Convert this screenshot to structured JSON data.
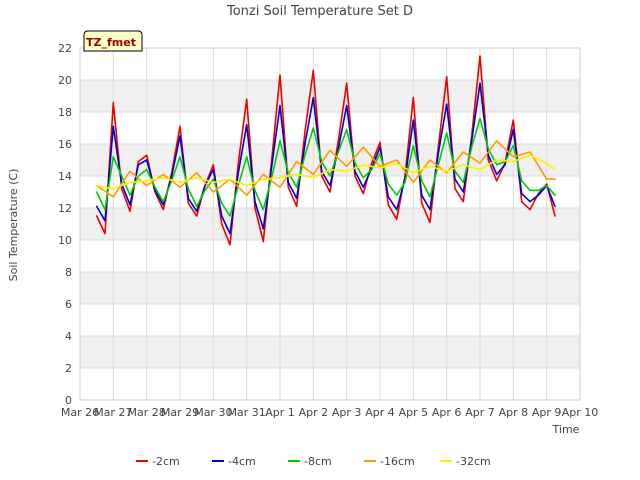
{
  "chart_data": {
    "type": "line",
    "title": "Tonzi Soil Temperature Set D",
    "xlabel": "Time",
    "ylabel": "Soil Temperature (C)",
    "ylim": [
      0,
      22
    ],
    "yticks": [
      0,
      2,
      4,
      6,
      8,
      10,
      12,
      14,
      16,
      18,
      20,
      22
    ],
    "xlim": [
      "Mar 26",
      "Apr 10"
    ],
    "xticks": [
      "Mar 26",
      "Mar 27",
      "Mar 28",
      "Mar 29",
      "Mar 30",
      "Mar 31",
      "Apr 1",
      "Apr 2",
      "Apr 3",
      "Apr 4",
      "Apr 5",
      "Apr 6",
      "Apr 7",
      "Apr 8",
      "Apr 9",
      "Apr 10"
    ],
    "grid": true,
    "legend_position": "bottom",
    "annotation": "TZ_fmet",
    "series": [
      {
        "name": "-2cm",
        "color": "#ee0000",
        "x": [
          "Mar 26 12:00",
          "Mar 26 18:00",
          "Mar 27 00:00",
          "Mar 27 06:00",
          "Mar 27 12:00",
          "Mar 27 18:00",
          "Mar 28 00:00",
          "Mar 28 06:00",
          "Mar 28 12:00",
          "Mar 28 18:00",
          "Mar 29 00:00",
          "Mar 29 06:00",
          "Mar 29 12:00",
          "Mar 29 18:00",
          "Mar 30 00:00",
          "Mar 30 06:00",
          "Mar 30 12:00",
          "Mar 30 18:00",
          "Mar 31 00:00",
          "Mar 31 06:00",
          "Mar 31 12:00",
          "Mar 31 18:00",
          "Apr 1 00:00",
          "Apr 1 06:00",
          "Apr 1 12:00",
          "Apr 1 18:00",
          "Apr 2 00:00",
          "Apr 2 06:00",
          "Apr 2 12:00",
          "Apr 2 18:00",
          "Apr 3 00:00",
          "Apr 3 06:00",
          "Apr 3 12:00",
          "Apr 3 18:00",
          "Apr 4 00:00",
          "Apr 4 06:00",
          "Apr 4 12:00",
          "Apr 4 18:00",
          "Apr 5 00:00",
          "Apr 5 06:00",
          "Apr 5 12:00",
          "Apr 5 18:00",
          "Apr 6 00:00",
          "Apr 6 06:00",
          "Apr 6 12:00",
          "Apr 6 18:00",
          "Apr 7 00:00",
          "Apr 7 06:00",
          "Apr 7 12:00",
          "Apr 7 18:00",
          "Apr 8 00:00",
          "Apr 8 06:00",
          "Apr 8 12:00",
          "Apr 8 18:00",
          "Apr 9 00:00",
          "Apr 9 06:00"
        ],
        "y": [
          11.5,
          10.4,
          18.6,
          13.2,
          11.8,
          14.9,
          15.3,
          13.0,
          11.9,
          14.2,
          17.1,
          12.3,
          11.5,
          13.4,
          14.7,
          11.0,
          9.7,
          14.8,
          18.8,
          12.0,
          9.9,
          15.0,
          20.3,
          13.3,
          12.1,
          16.8,
          20.6,
          14.0,
          13.0,
          16.2,
          19.8,
          14.0,
          12.9,
          14.8,
          16.1,
          12.2,
          11.3,
          14.0,
          18.9,
          12.3,
          11.1,
          15.8,
          20.2,
          13.2,
          12.4,
          16.5,
          21.5,
          15.0,
          13.7,
          14.8,
          17.5,
          12.4,
          11.9,
          12.9,
          13.5,
          11.5
        ]
      },
      {
        "name": "-4cm",
        "color": "#0000cc",
        "x": [
          "Mar 26 12:00",
          "Mar 26 18:00",
          "Mar 27 00:00",
          "Mar 27 06:00",
          "Mar 27 12:00",
          "Mar 27 18:00",
          "Mar 28 00:00",
          "Mar 28 06:00",
          "Mar 28 12:00",
          "Mar 28 18:00",
          "Mar 29 00:00",
          "Mar 29 06:00",
          "Mar 29 12:00",
          "Mar 29 18:00",
          "Mar 30 00:00",
          "Mar 30 06:00",
          "Mar 30 12:00",
          "Mar 30 18:00",
          "Mar 31 00:00",
          "Mar 31 06:00",
          "Mar 31 12:00",
          "Mar 31 18:00",
          "Apr 1 00:00",
          "Apr 1 06:00",
          "Apr 1 12:00",
          "Apr 1 18:00",
          "Apr 2 00:00",
          "Apr 2 06:00",
          "Apr 2 12:00",
          "Apr 2 18:00",
          "Apr 3 00:00",
          "Apr 3 06:00",
          "Apr 3 12:00",
          "Apr 3 18:00",
          "Apr 4 00:00",
          "Apr 4 06:00",
          "Apr 4 12:00",
          "Apr 4 18:00",
          "Apr 5 00:00",
          "Apr 5 06:00",
          "Apr 5 12:00",
          "Apr 5 18:00",
          "Apr 6 00:00",
          "Apr 6 06:00",
          "Apr 6 12:00",
          "Apr 6 18:00",
          "Apr 7 00:00",
          "Apr 7 06:00",
          "Apr 7 12:00",
          "Apr 7 18:00",
          "Apr 8 00:00",
          "Apr 8 06:00",
          "Apr 8 12:00",
          "Apr 8 18:00",
          "Apr 9 00:00",
          "Apr 9 06:00"
        ],
        "y": [
          12.1,
          11.2,
          17.1,
          13.5,
          12.2,
          14.7,
          15.0,
          13.1,
          12.2,
          14.0,
          16.5,
          12.6,
          11.8,
          13.4,
          14.4,
          11.5,
          10.4,
          14.2,
          17.2,
          12.4,
          10.7,
          14.6,
          18.4,
          13.6,
          12.6,
          16.0,
          18.9,
          14.3,
          13.4,
          15.7,
          18.4,
          14.3,
          13.3,
          14.5,
          15.8,
          12.7,
          11.9,
          13.8,
          17.5,
          12.8,
          11.9,
          15.4,
          18.5,
          13.8,
          13.0,
          16.2,
          19.8,
          15.3,
          14.1,
          14.7,
          16.9,
          12.9,
          12.4,
          12.8,
          13.4,
          12.1
        ]
      },
      {
        "name": "-8cm",
        "color": "#00cc00",
        "x": [
          "Mar 26 12:00",
          "Mar 26 18:00",
          "Mar 27 00:00",
          "Mar 27 06:00",
          "Mar 27 12:00",
          "Mar 27 18:00",
          "Mar 28 00:00",
          "Mar 28 06:00",
          "Mar 28 12:00",
          "Mar 28 18:00",
          "Mar 29 00:00",
          "Mar 29 06:00",
          "Mar 29 12:00",
          "Mar 29 18:00",
          "Mar 30 00:00",
          "Mar 30 06:00",
          "Mar 30 12:00",
          "Mar 30 18:00",
          "Mar 31 00:00",
          "Mar 31 06:00",
          "Mar 31 12:00",
          "Mar 31 18:00",
          "Apr 1 00:00",
          "Apr 1 06:00",
          "Apr 1 12:00",
          "Apr 1 18:00",
          "Apr 2 00:00",
          "Apr 2 06:00",
          "Apr 2 12:00",
          "Apr 2 18:00",
          "Apr 3 00:00",
          "Apr 3 06:00",
          "Apr 3 12:00",
          "Apr 3 18:00",
          "Apr 4 00:00",
          "Apr 4 06:00",
          "Apr 4 12:00",
          "Apr 4 18:00",
          "Apr 5 00:00",
          "Apr 5 06:00",
          "Apr 5 12:00",
          "Apr 5 18:00",
          "Apr 6 00:00",
          "Apr 6 06:00",
          "Apr 6 12:00",
          "Apr 6 18:00",
          "Apr 7 00:00",
          "Apr 7 06:00",
          "Apr 7 12:00",
          "Apr 7 18:00",
          "Apr 8 00:00",
          "Apr 8 06:00",
          "Apr 8 12:00",
          "Apr 8 18:00",
          "Apr 9 00:00",
          "Apr 9 06:00"
        ],
        "y": [
          13.0,
          11.9,
          15.2,
          14.0,
          12.8,
          14.0,
          14.4,
          13.3,
          12.4,
          13.7,
          15.2,
          13.2,
          12.1,
          13.1,
          13.8,
          12.3,
          11.5,
          13.4,
          15.2,
          13.1,
          11.9,
          13.9,
          16.2,
          14.2,
          13.3,
          15.3,
          17.0,
          14.9,
          14.0,
          15.5,
          16.9,
          14.8,
          13.9,
          14.4,
          15.4,
          13.5,
          12.8,
          13.6,
          15.9,
          13.7,
          12.7,
          14.7,
          16.7,
          14.3,
          13.6,
          15.8,
          17.6,
          15.7,
          14.7,
          14.9,
          15.9,
          13.7,
          13.1,
          13.1,
          13.4,
          12.8
        ]
      },
      {
        "name": "-16cm",
        "color": "#ff9900",
        "x": [
          "Mar 26 12:00",
          "Mar 27 00:00",
          "Mar 27 12:00",
          "Mar 28 00:00",
          "Mar 28 12:00",
          "Mar 29 00:00",
          "Mar 29 12:00",
          "Mar 30 00:00",
          "Mar 30 12:00",
          "Mar 31 00:00",
          "Mar 31 12:00",
          "Apr 1 00:00",
          "Apr 1 12:00",
          "Apr 2 00:00",
          "Apr 2 12:00",
          "Apr 3 00:00",
          "Apr 3 12:00",
          "Apr 4 00:00",
          "Apr 4 12:00",
          "Apr 5 00:00",
          "Apr 5 12:00",
          "Apr 6 00:00",
          "Apr 6 12:00",
          "Apr 7 00:00",
          "Apr 7 12:00",
          "Apr 8 00:00",
          "Apr 8 12:00",
          "Apr 9 00:00",
          "Apr 9 06:00"
        ],
        "y": [
          13.4,
          12.7,
          14.3,
          13.4,
          14.1,
          13.3,
          14.2,
          13.0,
          13.8,
          12.8,
          14.1,
          13.3,
          14.9,
          14.1,
          15.6,
          14.6,
          15.8,
          14.6,
          15.0,
          13.6,
          15.0,
          14.2,
          15.5,
          14.8,
          16.2,
          15.2,
          15.5,
          13.8,
          13.8
        ]
      },
      {
        "name": "-32cm",
        "color": "#ffee00",
        "x": [
          "Mar 26 12:00",
          "Mar 27 00:00",
          "Mar 27 12:00",
          "Mar 28 00:00",
          "Mar 28 12:00",
          "Mar 29 00:00",
          "Mar 29 12:00",
          "Mar 30 00:00",
          "Mar 30 12:00",
          "Mar 31 00:00",
          "Mar 31 12:00",
          "Apr 1 00:00",
          "Apr 1 12:00",
          "Apr 2 00:00",
          "Apr 2 12:00",
          "Apr 3 00:00",
          "Apr 3 12:00",
          "Apr 4 00:00",
          "Apr 4 12:00",
          "Apr 5 00:00",
          "Apr 5 12:00",
          "Apr 6 00:00",
          "Apr 6 12:00",
          "Apr 7 00:00",
          "Apr 7 12:00",
          "Apr 8 00:00",
          "Apr 8 12:00",
          "Apr 9 00:00",
          "Apr 9 06:00"
        ],
        "y": [
          13.4,
          13.2,
          13.6,
          13.7,
          13.9,
          13.6,
          13.9,
          13.6,
          13.8,
          13.4,
          13.8,
          13.9,
          14.1,
          13.9,
          14.4,
          14.3,
          14.7,
          14.5,
          14.8,
          14.2,
          14.6,
          14.3,
          14.7,
          14.4,
          15.0,
          14.9,
          15.3,
          14.8,
          14.4
        ]
      }
    ]
  }
}
